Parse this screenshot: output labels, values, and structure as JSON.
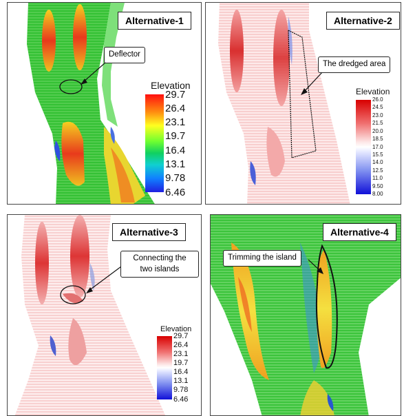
{
  "panels": [
    {
      "title": "Alternative-1",
      "callout": "Deflector",
      "colorbar": {
        "title": "Elevation",
        "ticks": [
          "29.7",
          "26.4",
          "23.1",
          "19.7",
          "16.4",
          "13.1",
          "9.78",
          "6.46"
        ],
        "scheme": "rainbow"
      }
    },
    {
      "title": "Alternative-2",
      "callout": "The dredged area",
      "colorbar": {
        "title": "Elevation",
        "ticks": [
          "26.0",
          "24.5",
          "23.0",
          "21.5",
          "20.0",
          "18.5",
          "17.0",
          "15.5",
          "14.0",
          "12.5",
          "11.0",
          "9.50",
          "8.00"
        ],
        "scheme": "red-white-blue"
      }
    },
    {
      "title": "Alternative-3",
      "callout_lines": [
        "Connecting the",
        "two islands"
      ],
      "colorbar": {
        "title": "Elevation",
        "ticks": [
          "29.7",
          "26.4",
          "23.1",
          "19.7",
          "16.4",
          "13.1",
          "9.78",
          "6.46"
        ],
        "scheme": "red-white-blue"
      }
    },
    {
      "title": "Alternative-4",
      "callout": "Trimming the island"
    }
  ],
  "colors": {
    "green": "#2fbf2f",
    "red": "#e0201a",
    "orange": "#f0a020",
    "blue": "#2c3cd8",
    "pink": "#f5b8b8"
  }
}
